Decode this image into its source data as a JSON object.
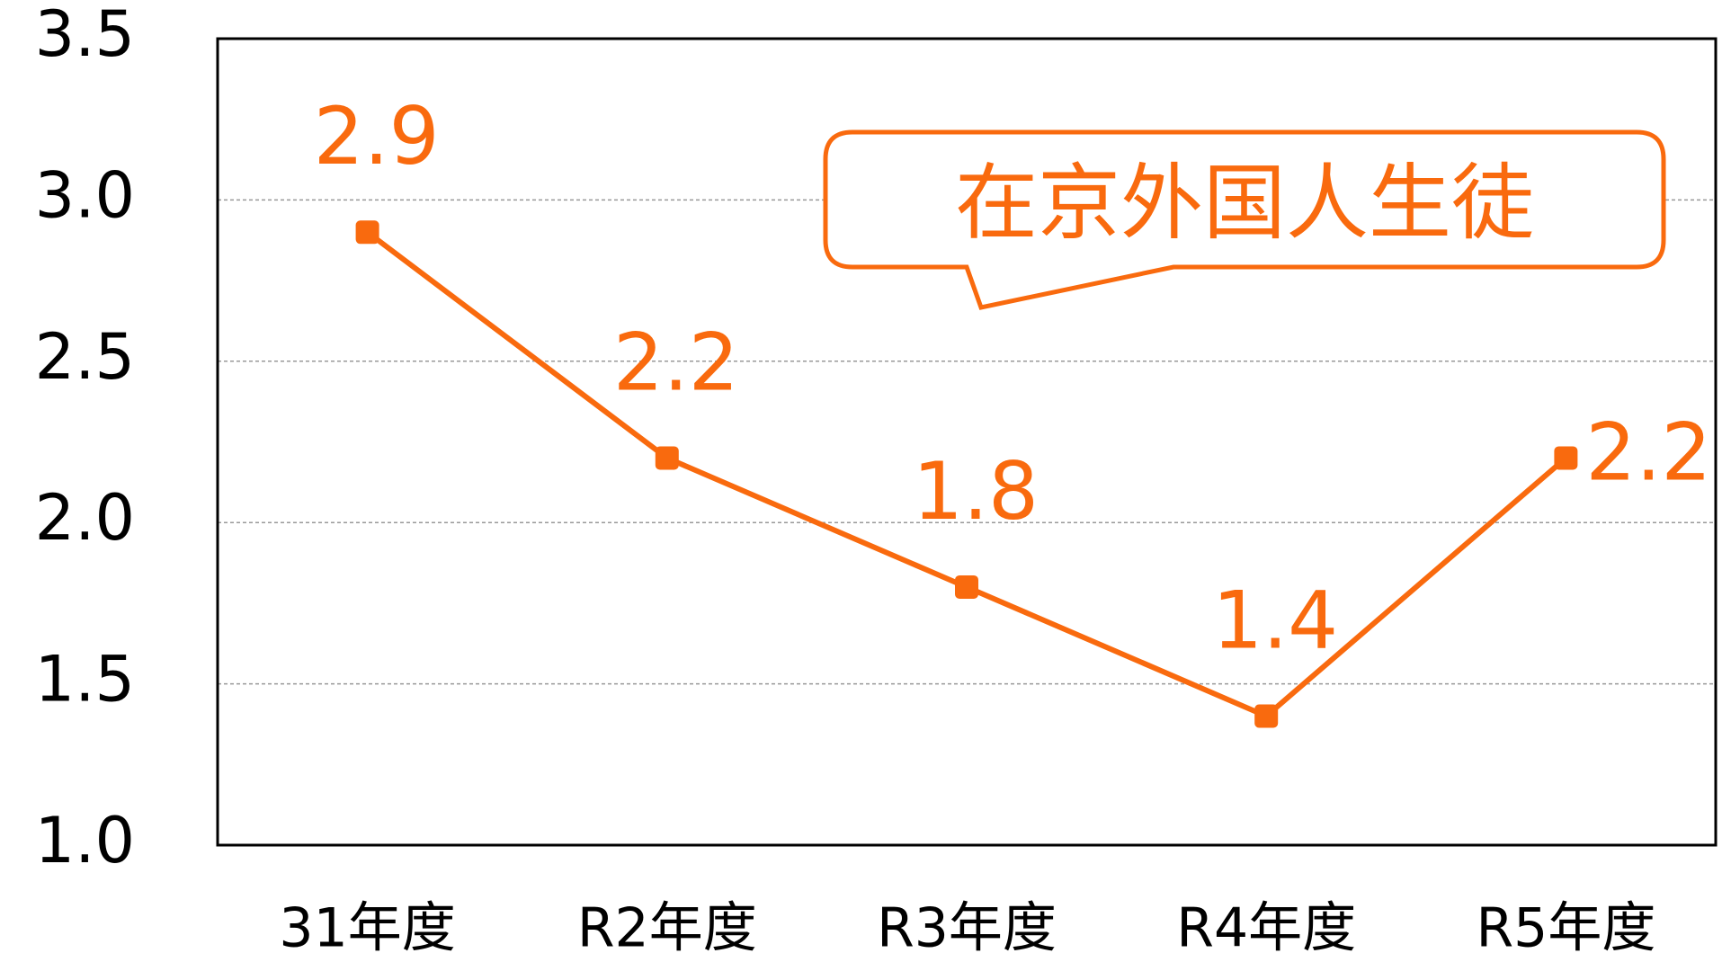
{
  "chart_data": {
    "type": "line",
    "categories": [
      "31年度",
      "R2年度",
      "R3年度",
      "R4年度",
      "R5年度"
    ],
    "series": [
      {
        "name": "在京外国人生徒",
        "color": "#f96a0e",
        "values": [
          2.9,
          2.2,
          1.8,
          1.4,
          2.2
        ]
      }
    ],
    "ylim": [
      1,
      3.5
    ],
    "yticks": [
      {
        "value": 1,
        "label": "1.0"
      },
      1.5,
      {
        "value": 2,
        "label": "2.0"
      },
      2.5,
      {
        "value": 3,
        "label": "3.0"
      },
      3.5
    ],
    "grid": true
  }
}
